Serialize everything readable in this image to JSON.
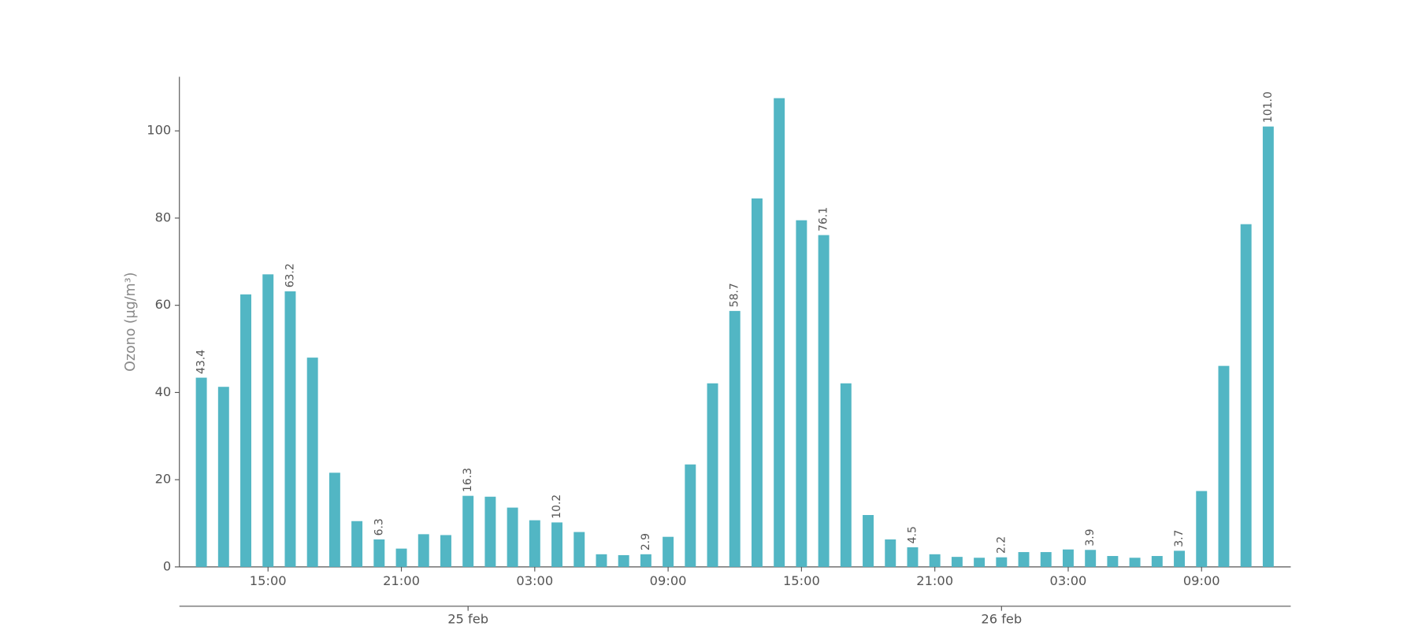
{
  "chart_data": {
    "type": "bar",
    "y_label": "Ozono (μg/m³)",
    "color": "#52b6c4",
    "categories": [
      null,
      null,
      null,
      "15:00",
      null,
      null,
      null,
      null,
      null,
      "21:00",
      null,
      null,
      null,
      null,
      null,
      "03:00",
      null,
      null,
      null,
      null,
      null,
      "09:00",
      null,
      null,
      null,
      null,
      null,
      "15:00",
      null,
      null,
      null,
      null,
      null,
      "21:00",
      null,
      null,
      null,
      null,
      null,
      "03:00",
      null,
      null,
      null,
      null,
      null,
      "09:00",
      null,
      null,
      null
    ],
    "day_categories": [
      null,
      null,
      null,
      null,
      null,
      null,
      null,
      null,
      null,
      null,
      null,
      null,
      "25 feb",
      null,
      null,
      null,
      null,
      null,
      null,
      null,
      null,
      null,
      null,
      null,
      null,
      null,
      null,
      null,
      null,
      null,
      null,
      null,
      null,
      null,
      null,
      null,
      "26 feb",
      null,
      null,
      null,
      null,
      null,
      null,
      null,
      null,
      null,
      null,
      null,
      null
    ],
    "values": [
      43.4,
      41.3,
      62.5,
      67.1,
      63.2,
      48.0,
      21.6,
      10.5,
      6.3,
      4.2,
      7.5,
      7.3,
      16.3,
      16.1,
      13.6,
      10.7,
      10.2,
      8.0,
      2.9,
      2.7,
      2.9,
      6.9,
      23.5,
      42.1,
      58.7,
      84.5,
      107.5,
      79.5,
      76.1,
      42.1,
      11.9,
      6.3,
      4.5,
      2.9,
      2.3,
      2.1,
      2.2,
      3.4,
      3.4,
      4.0,
      3.9,
      2.5,
      2.1,
      2.5,
      3.7,
      17.4,
      46.1,
      78.6,
      101.0
    ],
    "value_labels": [
      "43.4",
      null,
      null,
      null,
      "63.2",
      null,
      null,
      null,
      "6.3",
      null,
      null,
      null,
      "16.3",
      null,
      null,
      null,
      "10.2",
      null,
      null,
      null,
      "2.9",
      null,
      null,
      null,
      "58.7",
      null,
      null,
      null,
      "76.1",
      null,
      null,
      null,
      "4.5",
      null,
      null,
      null,
      "2.2",
      null,
      null,
      null,
      "3.9",
      null,
      null,
      null,
      "3.7",
      null,
      null,
      null,
      "101.0"
    ],
    "ylim": [
      0,
      112.4
    ],
    "yticks": [
      0,
      20,
      40,
      60,
      80,
      100
    ]
  }
}
